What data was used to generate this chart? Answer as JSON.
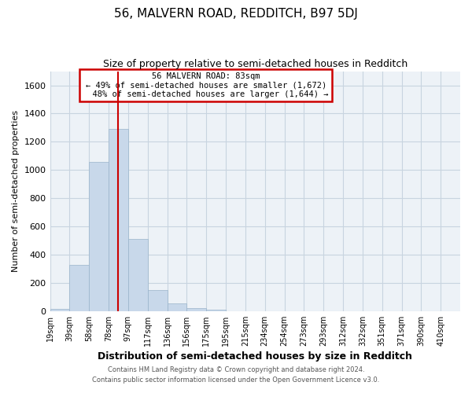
{
  "title": "56, MALVERN ROAD, REDDITCH, B97 5DJ",
  "subtitle": "Size of property relative to semi-detached houses in Redditch",
  "xlabel": "Distribution of semi-detached houses by size in Redditch",
  "ylabel": "Number of semi-detached properties",
  "bar_color": "#c8d8ea",
  "bar_edge_color": "#9ab4ca",
  "grid_color": "#c8d4e0",
  "background_color": "#edf2f7",
  "bin_labels": [
    "19sqm",
    "39sqm",
    "58sqm",
    "78sqm",
    "97sqm",
    "117sqm",
    "136sqm",
    "156sqm",
    "175sqm",
    "195sqm",
    "215sqm",
    "234sqm",
    "254sqm",
    "273sqm",
    "293sqm",
    "312sqm",
    "332sqm",
    "351sqm",
    "371sqm",
    "390sqm",
    "410sqm"
  ],
  "bar_values": [
    15,
    330,
    1055,
    1290,
    510,
    150,
    55,
    20,
    10,
    0,
    0,
    0,
    0,
    0,
    0,
    0,
    0,
    0,
    0,
    0,
    0
  ],
  "ylim": [
    0,
    1700
  ],
  "yticks": [
    0,
    200,
    400,
    600,
    800,
    1000,
    1200,
    1400,
    1600
  ],
  "property_line_bin": 3.5,
  "annotation_title": "56 MALVERN ROAD: 83sqm",
  "annotation_line1": "← 49% of semi-detached houses are smaller (1,672)",
  "annotation_line2": "  48% of semi-detached houses are larger (1,644) →",
  "annotation_box_color": "#ffffff",
  "annotation_border_color": "#cc0000",
  "property_line_color": "#cc0000",
  "footer_line1": "Contains HM Land Registry data © Crown copyright and database right 2024.",
  "footer_line2": "Contains public sector information licensed under the Open Government Licence v3.0."
}
